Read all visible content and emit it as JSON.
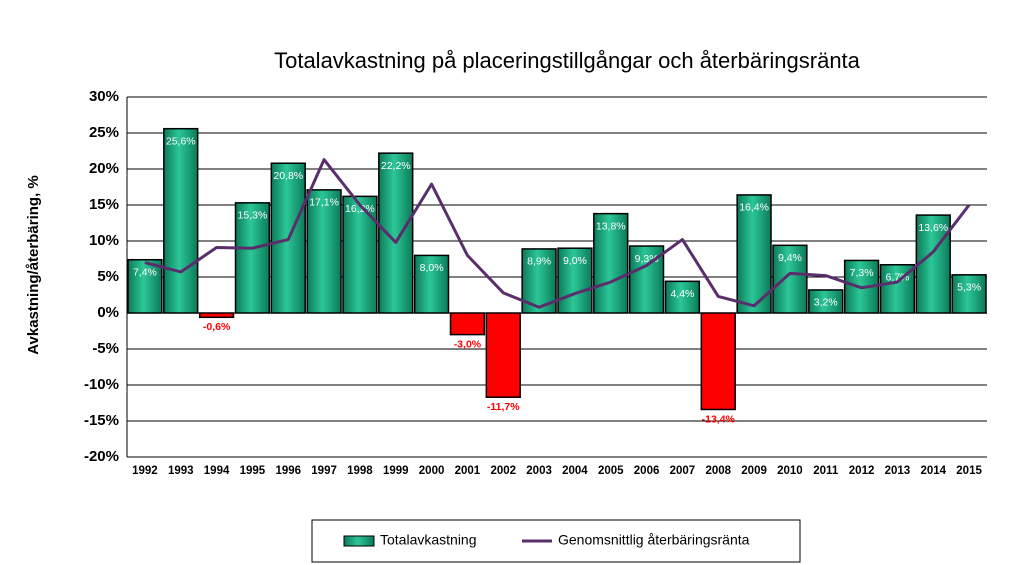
{
  "chart_data": {
    "type": "bar",
    "title": "Totalavkastning på placeringstillgångar och återbäringsränta",
    "y_label": "Avkastning/återbäring, %",
    "categories": [
      "1992",
      "1993",
      "1994",
      "1995",
      "1996",
      "1997",
      "1998",
      "1999",
      "2000",
      "2001",
      "2002",
      "2003",
      "2004",
      "2005",
      "2006",
      "2007",
      "2008",
      "2009",
      "2010",
      "2011",
      "2012",
      "2013",
      "2014",
      "2015"
    ],
    "series": [
      {
        "name": "Totalavkastning",
        "type": "bar",
        "color": "#17a57c",
        "negative_color": "#ff0000",
        "values": [
          7.4,
          25.6,
          -0.6,
          15.3,
          20.8,
          17.1,
          16.2,
          22.2,
          8.0,
          -3.0,
          -11.7,
          8.9,
          9.0,
          13.8,
          9.3,
          4.4,
          -13.4,
          16.4,
          9.4,
          3.2,
          7.3,
          6.7,
          13.6,
          5.3
        ],
        "value_labels": [
          "7,4%",
          "25,6%",
          "-0,6%",
          "15,3%",
          "20,8%",
          "17,1%",
          "16,2%",
          "22,2%",
          "8,0%",
          "-3,0%",
          "-11,7%",
          "8,9%",
          "9,0%",
          "13,8%",
          "9,3%",
          "4,4%",
          "-13,4%",
          "16,4%",
          "9,4%",
          "3,2%",
          "7,3%",
          "6,7%",
          "13,6%",
          "5,3%"
        ]
      },
      {
        "name": "Genomsnittlig återbäringsränta",
        "type": "line",
        "color": "#5a2d6b",
        "values": [
          7.0,
          5.7,
          9.1,
          9.0,
          10.2,
          21.3,
          15.0,
          9.8,
          17.9,
          8.0,
          2.8,
          0.8,
          2.7,
          4.3,
          6.6,
          10.2,
          2.3,
          1.0,
          5.5,
          5.2,
          3.5,
          4.3,
          8.5,
          15.0
        ]
      }
    ],
    "ylim": [
      -20,
      30
    ],
    "yticks": [
      {
        "value": -20,
        "label": "-20%"
      },
      {
        "value": -15,
        "label": "-15%"
      },
      {
        "value": -10,
        "label": "-10%"
      },
      {
        "value": -5,
        "label": "-5%"
      },
      {
        "value": 0,
        "label": "0%"
      },
      {
        "value": 5,
        "label": "5%"
      },
      {
        "value": 10,
        "label": "10%"
      },
      {
        "value": 15,
        "label": "15%"
      },
      {
        "value": 20,
        "label": "20%"
      },
      {
        "value": 25,
        "label": "25%"
      },
      {
        "value": 30,
        "label": "30%"
      }
    ],
    "grid": true,
    "legend": "bottom"
  }
}
